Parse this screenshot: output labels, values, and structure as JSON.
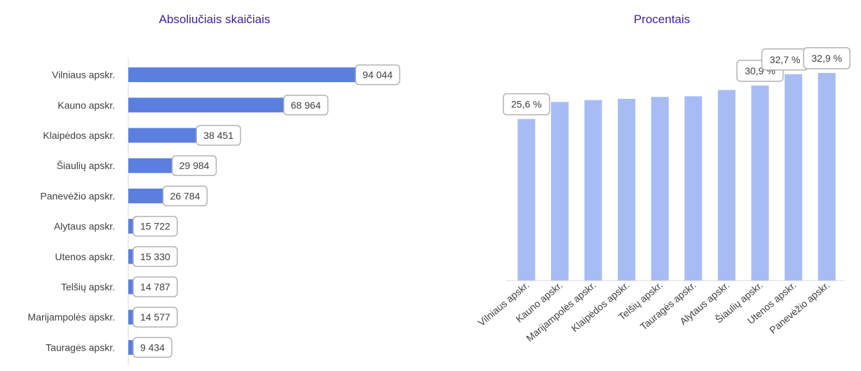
{
  "chart_data": [
    {
      "type": "bar",
      "orientation": "horizontal",
      "title": "Absoliučiais skaičiais",
      "categories": [
        "Vilniaus apskr.",
        "Kauno apskr.",
        "Klaipėdos apskr.",
        "Šiaulių apskr.",
        "Panevėžio apskr.",
        "Alytaus apskr.",
        "Utenos apskr.",
        "Telšių apskr.",
        "Marijampolės apskr.",
        "Tauragės apskr."
      ],
      "values": [
        94044,
        68964,
        38451,
        29984,
        26784,
        15722,
        15330,
        14787,
        14577,
        9434
      ],
      "labels": [
        "94 044",
        "68 964",
        "38 451",
        "29 984",
        "26 784",
        "15 722",
        "15 330",
        "14 787",
        "14 577",
        "9 434"
      ],
      "xlim": [
        0,
        96000
      ],
      "grid": false,
      "color": "#5a7fdf"
    },
    {
      "type": "bar",
      "orientation": "vertical",
      "title": "Procentais",
      "categories": [
        "Vilniaus apskr.",
        "Kauno apskr.",
        "Marijampolės apskr.",
        "Klaipėdos apskr.",
        "Telšių apskr.",
        "Tauragės apskr.",
        "Alytaus apskr.",
        "Šiaulių apskr.",
        "Utenos apskr.",
        "Panevėžio apskr."
      ],
      "values": [
        25.6,
        28.3,
        28.6,
        28.8,
        29.1,
        29.2,
        30.2,
        30.9,
        32.7,
        32.9
      ],
      "labels": [
        "25,6 %",
        "",
        "",
        "",
        "",
        "",
        "",
        "30,9 %",
        "32,7 %",
        "32,9 %"
      ],
      "ylim": [
        0,
        36
      ],
      "grid": false,
      "color": "#a8bcf4"
    }
  ]
}
